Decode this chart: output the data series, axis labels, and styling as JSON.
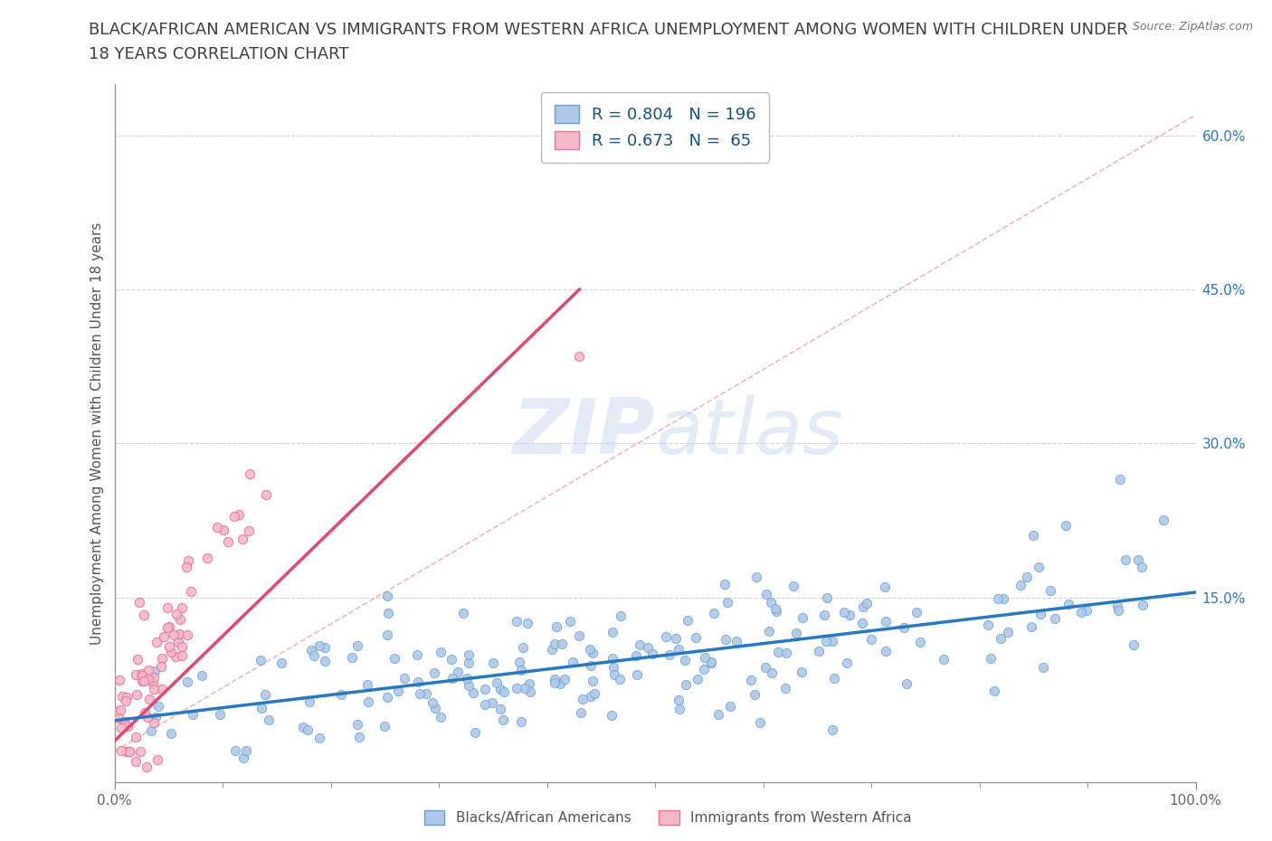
{
  "title_line1": "BLACK/AFRICAN AMERICAN VS IMMIGRANTS FROM WESTERN AFRICA UNEMPLOYMENT AMONG WOMEN WITH CHILDREN UNDER",
  "title_line2": "18 YEARS CORRELATION CHART",
  "source": "Source: ZipAtlas.com",
  "ylabel": "Unemployment Among Women with Children Under 18 years",
  "xlim": [
    0,
    1.0
  ],
  "ylim": [
    -0.03,
    0.65
  ],
  "ytick_positions": [
    0.15,
    0.3,
    0.45,
    0.6
  ],
  "ytick_labels": [
    "15.0%",
    "30.0%",
    "45.0%",
    "60.0%"
  ],
  "blue_R": 0.804,
  "blue_N": 196,
  "pink_R": 0.673,
  "pink_N": 65,
  "blue_color": "#adc8e8",
  "blue_edge": "#6aa0d0",
  "blue_line_color": "#2878c0",
  "pink_color": "#f5b8c8",
  "pink_edge": "#e87898",
  "pink_line_color": "#e04870",
  "ref_line_color": "#f0b0b0",
  "grid_color": "#c8c8c8",
  "background_color": "#ffffff",
  "title_color": "#404040",
  "legend_text_color": "#1a5276",
  "watermark_color": "#c8d8ee",
  "blue_label": "Blacks/African Americans",
  "pink_label": "Immigrants from Western Africa",
  "blue_trend_x0": 0.0,
  "blue_trend_y0": 0.03,
  "blue_trend_x1": 1.0,
  "blue_trend_y1": 0.155,
  "pink_trend_x0": 0.0,
  "pink_trend_y0": 0.01,
  "pink_trend_x1": 0.43,
  "pink_trend_y1": 0.45
}
